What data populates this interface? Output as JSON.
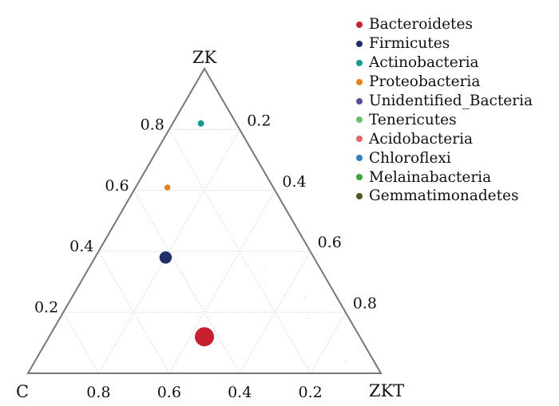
{
  "chart_data": {
    "type": "scatter",
    "subtype": "ternary",
    "axes": {
      "top": "ZK",
      "left": "C",
      "right": "ZKT"
    },
    "ticks": {
      "zk": [
        "0.2",
        "0.4",
        "0.6",
        "0.8"
      ],
      "zkt": [
        "0.2",
        "0.4",
        "0.6",
        "0.8"
      ],
      "c": [
        "0.2",
        "0.4",
        "0.6",
        "0.8"
      ]
    },
    "grid": true,
    "legend_position": "top-right",
    "series": [
      {
        "name": "Bacteroidetes",
        "color": "#c8202e",
        "zk": 0.12,
        "zkt": 0.44,
        "relative_abundance": 0.4
      },
      {
        "name": "Firmicutes",
        "color": "#1f2d6b",
        "zk": 0.38,
        "zkt": 0.2,
        "relative_abundance": 0.12
      },
      {
        "name": "Actinobacteria",
        "color": "#1a9a8e",
        "zk": 0.82,
        "zkt": 0.08,
        "relative_abundance": 0.01
      },
      {
        "name": "Proteobacteria",
        "color": "#e8821f",
        "zk": 0.61,
        "zkt": 0.09,
        "relative_abundance": 0.007
      },
      {
        "name": "Unidentified_Bacteria",
        "color": "#5a4a9a",
        "zk": 0.35,
        "zkt": 0.5,
        "relative_abundance": 0.0
      },
      {
        "name": "Tenericutes",
        "color": "#6cc06a",
        "zk": 0.3,
        "zkt": 0.52,
        "relative_abundance": 0.0
      },
      {
        "name": "Acidobacteria",
        "color": "#e0646a",
        "zk": 0.18,
        "zkt": 0.7,
        "relative_abundance": 0.0
      },
      {
        "name": "Chloroflexi",
        "color": "#2e7fc2",
        "zk": 0.25,
        "zkt": 0.66,
        "relative_abundance": 0.0
      },
      {
        "name": "Melainabacteria",
        "color": "#3aa63a",
        "zk": 0.04,
        "zkt": 0.88,
        "relative_abundance": 0.0
      },
      {
        "name": "Gemmatimonadetes",
        "color": "#4a5a1a",
        "zk": 0.06,
        "zkt": 0.92,
        "relative_abundance": 0.0
      }
    ]
  }
}
